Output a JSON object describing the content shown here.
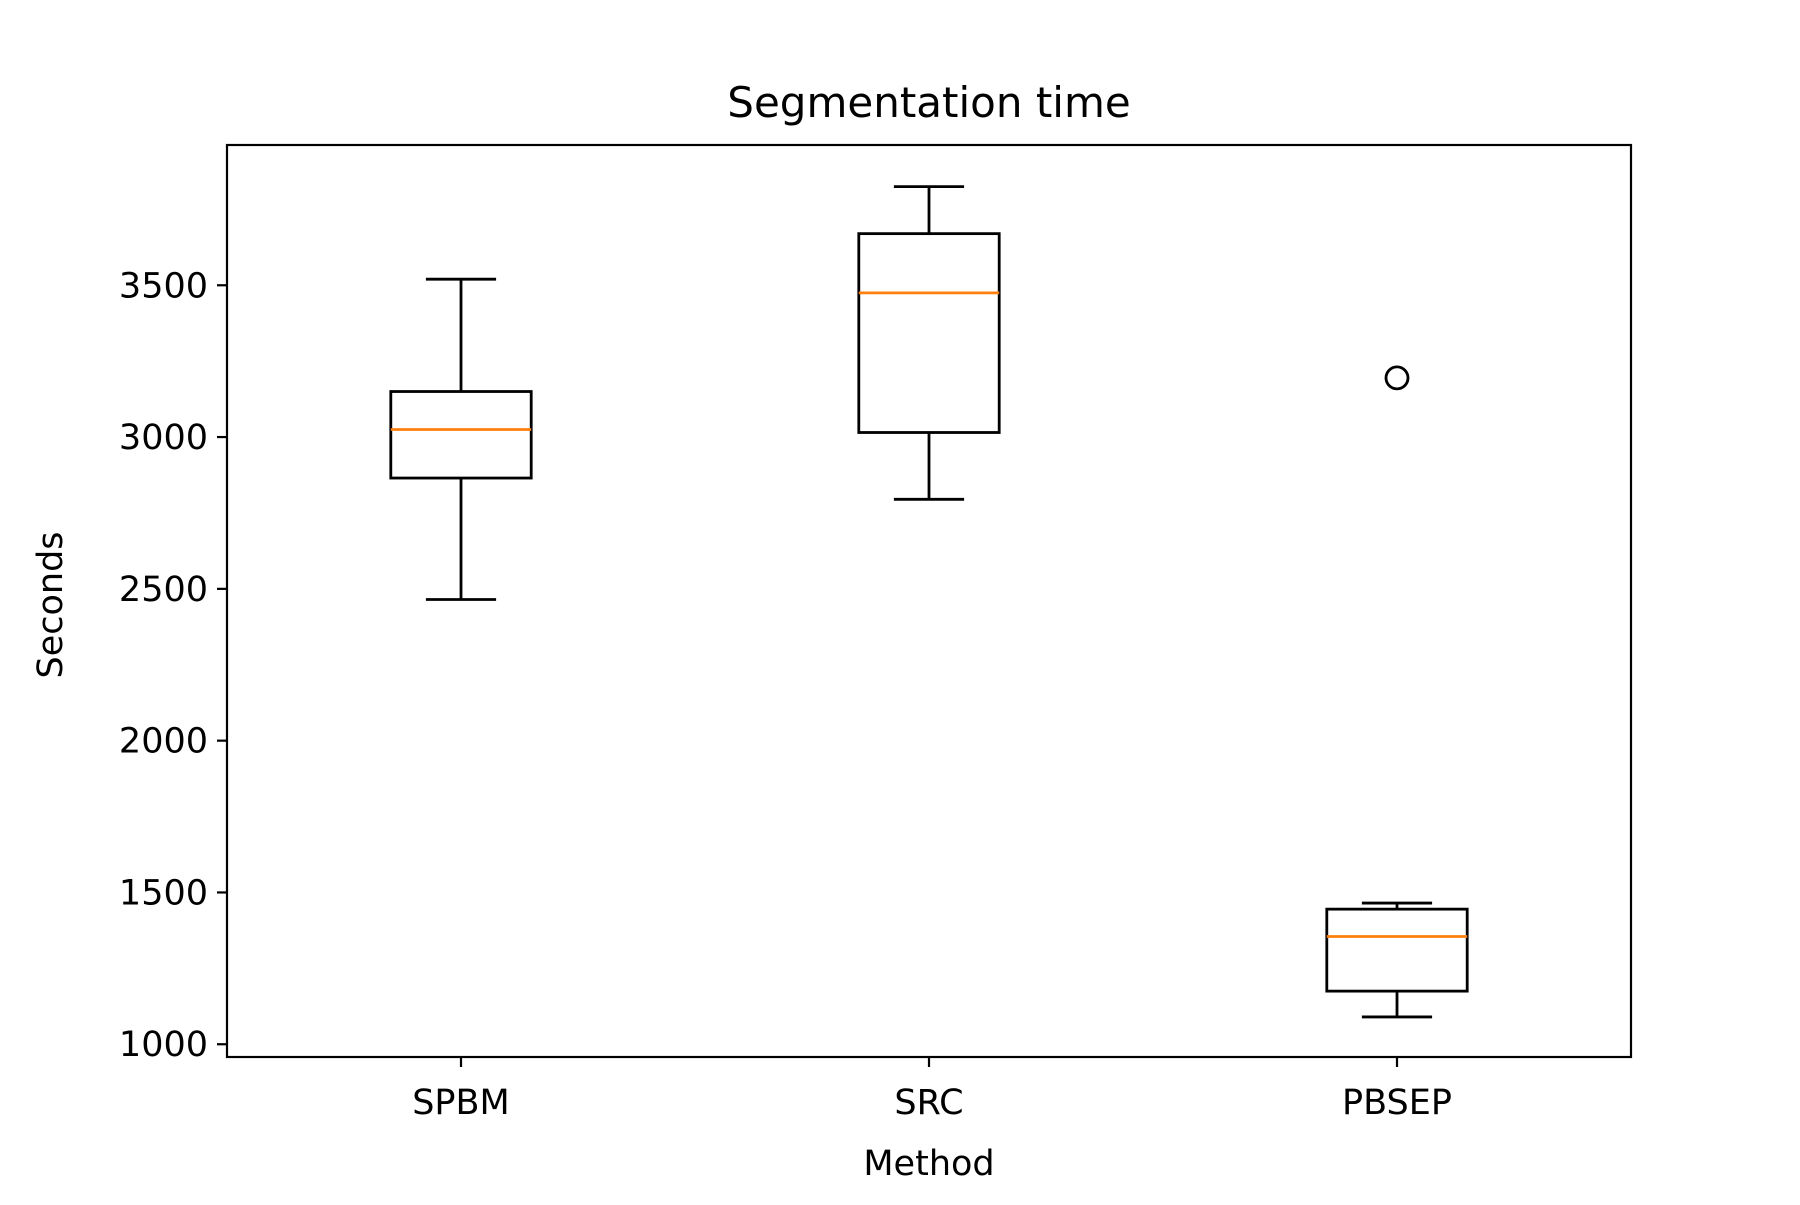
{
  "chart_data": {
    "type": "box",
    "title": "Segmentation time",
    "xlabel": "Method",
    "ylabel": "Seconds",
    "ylim": [
      958,
      3962
    ],
    "y_ticks": [
      1000,
      1500,
      2000,
      2500,
      3000,
      3500
    ],
    "grid": false,
    "categories": [
      "SPBM",
      "SRC",
      "PBSEP"
    ],
    "boxes": [
      {
        "category": "SPBM",
        "whisker_low": 2465,
        "q1": 2865,
        "median": 3025,
        "q3": 3150,
        "whisker_high": 3520,
        "outliers": []
      },
      {
        "category": "SRC",
        "whisker_low": 2795,
        "q1": 3015,
        "median": 3475,
        "q3": 3670,
        "whisker_high": 3825,
        "outliers": []
      },
      {
        "category": "PBSEP",
        "whisker_low": 1090,
        "q1": 1175,
        "median": 1355,
        "q3": 1445,
        "whisker_high": 1465,
        "outliers": [
          3195
        ]
      }
    ],
    "colors": {
      "box": "#000000",
      "median": "#ff7f0e",
      "outlier": "#000000"
    }
  }
}
